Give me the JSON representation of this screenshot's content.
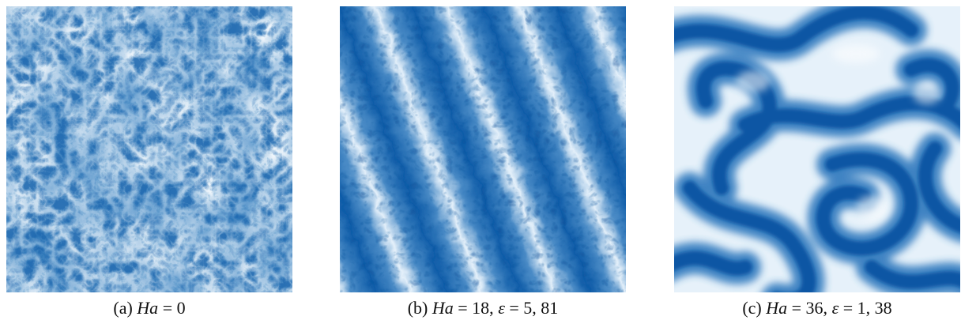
{
  "figure": {
    "colors": {
      "light": "#eaf3fb",
      "mid": "#4c8cc4",
      "dark": "#0b56a4"
    },
    "panels": [
      {
        "id": "a",
        "content": "turbulent field, no large-scale structure",
        "caption": {
          "tag": "(a)",
          "var": "Ha",
          "rest": " = 0"
        }
      },
      {
        "id": "b",
        "content": "diagonal stripe pattern with turbulent fluctuations",
        "caption": {
          "tag": "(b)",
          "var": "Ha",
          "rest": " = 18, ",
          "var2": "ε",
          "rest2": " = 5, 81"
        }
      },
      {
        "id": "c",
        "content": "smooth labyrinthine stripe pattern",
        "caption": {
          "tag": "(c)",
          "var": "Ha",
          "rest": " = 36, ",
          "var2": "ε",
          "rest2": " = 1, 38"
        }
      }
    ]
  }
}
